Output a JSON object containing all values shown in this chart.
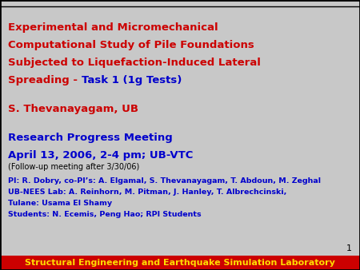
{
  "background_color": "#c8c8c8",
  "footer_bg_color": "#cc0000",
  "footer_text": "Structural Engineering and Earthquake Simulation Laboratory",
  "footer_text_color": "#ffdd00",
  "slide_number": "1",
  "slide_number_color": "#000000",
  "title_line1": "Experimental and Micromechanical",
  "title_line2": "Computational Study of Pile Foundations",
  "title_line3": "Subjected to Liquefaction-Induced Lateral",
  "title_line4_red": "Spreading - ",
  "title_line4_blue": "Task 1 (1g Tests)",
  "title_color_red": "#cc0000",
  "title_color_blue": "#0000cc",
  "author": "S. Thevanayagam, UB",
  "author_color": "#cc0000",
  "meeting_line1": "Research Progress Meeting",
  "meeting_line2": "April 13, 2006, 2-4 pm; UB-VTC",
  "meeting_color": "#0000cc",
  "followup": "(Follow-up meeting after 3/30/06)",
  "followup_color": "#000000",
  "pi_line1": "PI: R. Dobry, co-PI’s: A. Elgamal, S. Thevanayagam, T. Abdoun, M. Zeghal",
  "pi_line2": "UB-NEES Lab: A. Reinhorn, M. Pitman, J. Hanley, T. Albrechcinski,",
  "pi_line3": "Tulane: Usama El Shamy",
  "pi_line4": "Students: N. Ecemis, Peng Hao; RPI Students",
  "pi_color": "#0000cc",
  "top_border_color": "#000000",
  "outer_border_color": "#000000"
}
